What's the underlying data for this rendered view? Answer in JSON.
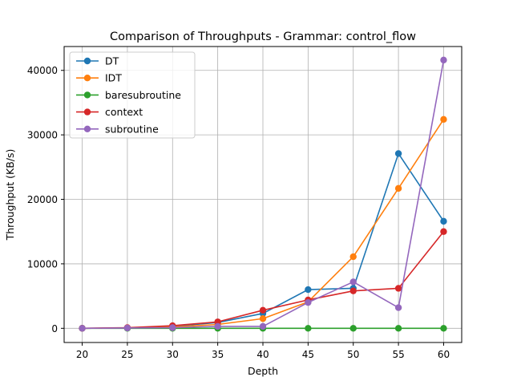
{
  "chart_data": {
    "type": "line",
    "title": "Comparison of Throughputs - Grammar: control_flow",
    "xlabel": "Depth",
    "ylabel": "Throughput (KB/s)",
    "x": [
      20,
      25,
      30,
      35,
      40,
      45,
      50,
      55,
      60
    ],
    "xlim": [
      18,
      62
    ],
    "ylim": [
      -2200,
      43700
    ],
    "xticks": [
      20,
      25,
      30,
      35,
      40,
      45,
      50,
      55,
      60
    ],
    "yticks": [
      0,
      10000,
      20000,
      30000,
      40000
    ],
    "grid": true,
    "legend_position": "upper-left",
    "series": [
      {
        "name": "DT",
        "color": "#1f77b4",
        "values": [
          0,
          50,
          300,
          900,
          2300,
          6000,
          6200,
          27100,
          16600
        ]
      },
      {
        "name": "IDT",
        "color": "#ff7f0e",
        "values": [
          0,
          50,
          200,
          600,
          1500,
          4100,
          11100,
          21700,
          32400
        ]
      },
      {
        "name": "baresubroutine",
        "color": "#2ca02c",
        "values": [
          0,
          0,
          0,
          0,
          0,
          0,
          0,
          0,
          0
        ]
      },
      {
        "name": "context",
        "color": "#d62728",
        "values": [
          0,
          100,
          400,
          1000,
          2800,
          4400,
          5800,
          6200,
          15000
        ]
      },
      {
        "name": "subroutine",
        "color": "#9467bd",
        "values": [
          0,
          50,
          100,
          300,
          300,
          4000,
          7200,
          3200,
          41600
        ]
      }
    ]
  }
}
